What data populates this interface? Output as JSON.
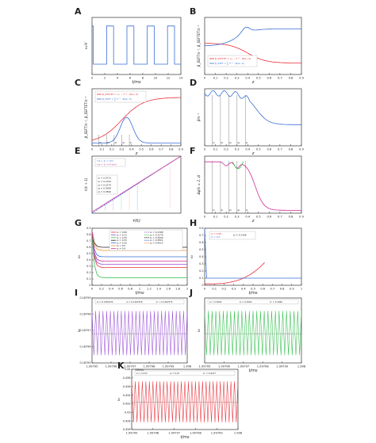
{
  "figure": {
    "panels": [
      {
        "letter": "A",
        "xlabel": "t/ms",
        "ylabel": "v₀/V",
        "xticks": [
          "0",
          "2",
          "4",
          "6",
          "8",
          "10",
          "12",
          "14"
        ],
        "yticks": []
      },
      {
        "letter": "B",
        "xlabel": "z",
        "ylabel": "β_SSFT/s⁻¹, β_SSFTET/s⁻¹",
        "xticks": [
          "0",
          "0.1",
          "0.2",
          "0.3",
          "0.4",
          "0.5",
          "0.6",
          "0.7",
          "0.8",
          "0.9"
        ],
        "yticks": [],
        "legend": [
          "β_SSFTET = v₊ − T⁻¹ · θ(V₀, δ)",
          "β_SSFT = ∑ T⁻¹ · θ(V₀, δ)"
        ]
      },
      {
        "letter": "C",
        "xlabel": "z",
        "ylabel": "β_SSFT/s⁻¹, β_SSFTET/s⁻¹",
        "xticks": [
          "0",
          "0.1",
          "0.2",
          "0.3",
          "0.4",
          "0.5",
          "0.6",
          "0.7",
          "0.8",
          "0.9"
        ],
        "yticks": [],
        "legend": [
          "β_SSFTET = v₊ − T⁻¹ · θ(V₀, δ)",
          "β_SSFT = ∑ T⁻¹ · θ(V₀, δ)"
        ],
        "markers": [
          "z₁",
          "z₂",
          "z₃",
          "z₄",
          "z₅"
        ]
      },
      {
        "letter": "D",
        "xlabel": "z",
        "ylabel": "β/s⁻¹",
        "xticks": [
          "0",
          "0.1",
          "0.2",
          "0.3",
          "0.4",
          "0.5",
          "0.6",
          "0.7",
          "0.8",
          "0.9"
        ],
        "yticks": [],
        "markers": [
          "z₁",
          "z₂",
          "z₃",
          "z₄",
          "z₅"
        ]
      },
      {
        "letter": "E",
        "xlabel": "τ(k)",
        "ylabel": "τ(k + 1)",
        "xticks": [],
        "yticks": [],
        "legend": [
          "τ(k + 1) = τ(k)",
          "τ(k + 1) = F(τ(k))"
        ],
        "values": [
          "z₁ = 0.0712",
          "z₂ = 0.1543",
          "z₃ = 0.2274",
          "z₄ = 0.3058",
          "z₅ = 0.3826"
        ]
      },
      {
        "letter": "F",
        "xlabel": "z",
        "ylabel": "Δφ(k = 2, z)",
        "xticks": [
          "0",
          "0.1",
          "0.2",
          "0.3",
          "0.4",
          "0.5",
          "0.6",
          "0.7",
          "0.8",
          "0.9"
        ],
        "yticks": [],
        "markers": [
          "z₁",
          "z₂",
          "z₃",
          "z₄",
          "z₅"
        ]
      },
      {
        "letter": "G",
        "xlabel": "t/ms",
        "ylabel": "v₀",
        "xticks": [
          "0",
          "0.2",
          "0.4",
          "0.6",
          "0.8",
          "1",
          "1.2",
          "1.4",
          "1.6",
          "1.8",
          "2"
        ],
        "yticks": [
          "0",
          "0.1",
          "0.2",
          "0.3",
          "0.4",
          "0.5",
          "0.6",
          "0.7",
          "0.8",
          "0.9"
        ],
        "legend": [
          "z₀ = 0.09",
          "z₀ = 0.11",
          "z₀ = 0.25",
          "z₀ = 0.31",
          "z₀ = 0.35",
          "z₀ = 0.5",
          "z₀ = 0.9"
        ],
        "legend2": [
          "z₀ = 0.1368",
          "z₀ = 0.2279",
          "z₀ = 0.3009",
          "z₀ = 0.3814",
          "z₀ = 0.4013"
        ]
      },
      {
        "letter": "H",
        "xlabel": "t/ms",
        "ylabel": "v₀",
        "xticks": [
          "0",
          "0.1",
          "0.2",
          "0.3",
          "0.4",
          "0.5",
          "0.6",
          "0.7",
          "0.8",
          "0.9",
          "1"
        ],
        "yticks": [
          "0",
          "0.1",
          "0.2",
          "0.3",
          "0.4",
          "0.5",
          "0.6",
          "0.7",
          "0.8"
        ],
        "legend": [
          "z₀ = 0.08",
          "z₀ = 0.2"
        ],
        "legend2": [
          "z₀ = 0.1368"
        ]
      },
      {
        "letter": "I",
        "xlabel": "t/ms",
        "ylabel": "v₀",
        "xticks": [
          "1.99795",
          "1.99796",
          "1.99797",
          "1.99798",
          "1.99799",
          "1.998"
        ],
        "yticks": [
          "0.18795",
          "0.18796",
          "0.18797",
          "0.18798",
          "0.18799"
        ],
        "legend": [
          "z₀ = 0.1367976",
          "z₀ = 0.1367976",
          "z₁′ = 0.1367975"
        ]
      },
      {
        "letter": "J",
        "xlabel": "t/ms",
        "ylabel": "v₀",
        "xticks": [
          "1.99795",
          "1.99796",
          "1.99797",
          "1.99798",
          "1.99799",
          "1.998"
        ],
        "yticks": [],
        "legend": [
          "z₀ = 0.3003",
          "z₀ = 0.3003",
          "z₂′ = 0.3006"
        ]
      },
      {
        "letter": "K",
        "xlabel": "t/ms",
        "ylabel": "v₀",
        "xticks": [
          "1.99795",
          "1.99796",
          "1.99797",
          "1.99798",
          "1.99799",
          "1.998"
        ],
        "yticks": [
          "0.426",
          "0.428",
          "0.43",
          "0.432",
          "0.434",
          "0.436",
          "0.438",
          "0.44"
        ],
        "legend": [
          "z₀ = 0.413",
          "z₀ = 0.23",
          "z₃′ = 0.4137"
        ]
      }
    ]
  },
  "colors": {
    "red": "#e8303a",
    "blue": "#3a6fd8",
    "green": "#2fbf4a",
    "purple": "#9b4fd8",
    "black": "#222222",
    "magenta": "#d0309a",
    "orange": "#f0902a"
  }
}
